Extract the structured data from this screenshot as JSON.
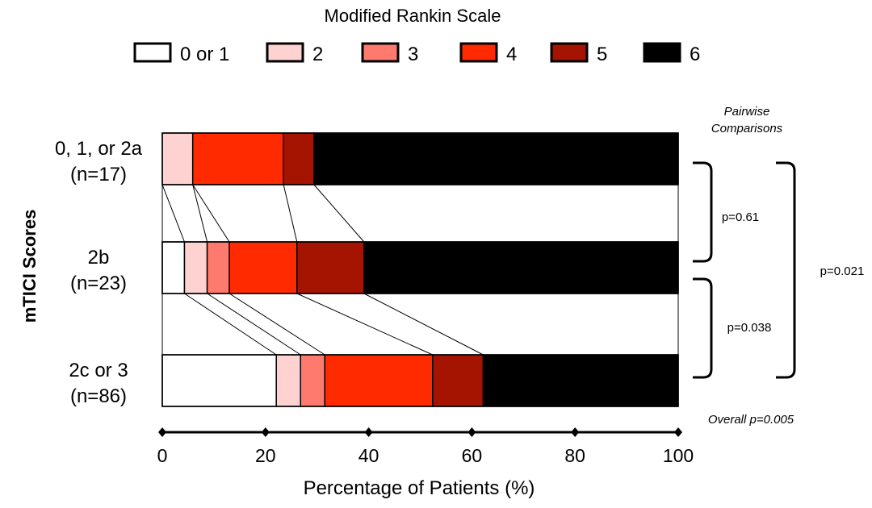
{
  "chart_data": {
    "type": "bar",
    "orientation": "horizontal",
    "stacked": true,
    "legend_title": "Modified Rankin Scale",
    "legend_position": "top",
    "ylabel": "mTICI Scores",
    "xlabel": "Percentage of Patients (%)",
    "xlim": [
      0,
      100
    ],
    "xticks": [
      "0",
      "20",
      "40",
      "60",
      "80",
      "100"
    ],
    "grid": false,
    "categories": [
      {
        "line1": "0, 1, or 2a",
        "line2": "(n=17)"
      },
      {
        "line1": "2b",
        "line2": "(n=23)"
      },
      {
        "line1": "2c or 3",
        "line2": "(n=86)"
      }
    ],
    "series": [
      {
        "name": "0 or 1",
        "color": "#ffffff",
        "values": [
          0,
          4.3,
          22.1
        ]
      },
      {
        "name": "2",
        "color": "#ffd2d2",
        "values": [
          5.9,
          4.4,
          4.7
        ]
      },
      {
        "name": "3",
        "color": "#ff7a6e",
        "values": [
          0,
          4.3,
          4.7
        ]
      },
      {
        "name": "4",
        "color": "#ff2a00",
        "values": [
          17.6,
          13.1,
          20.9
        ]
      },
      {
        "name": "5",
        "color": "#a51400",
        "values": [
          5.9,
          13.0,
          9.8
        ]
      },
      {
        "name": "6",
        "color": "#000000",
        "values": [
          70.6,
          60.9,
          37.8
        ]
      }
    ],
    "annotations": {
      "pairwise_header_line1": "Pairwise",
      "pairwise_header_line2": "Comparisons",
      "comparisons": [
        {
          "between": [
            0,
            1
          ],
          "label": "p=0.61"
        },
        {
          "between": [
            1,
            2
          ],
          "label": "p=0.038"
        },
        {
          "between": [
            0,
            2
          ],
          "label": "p=0.021"
        }
      ],
      "overall": "Overall p=0.005"
    }
  }
}
